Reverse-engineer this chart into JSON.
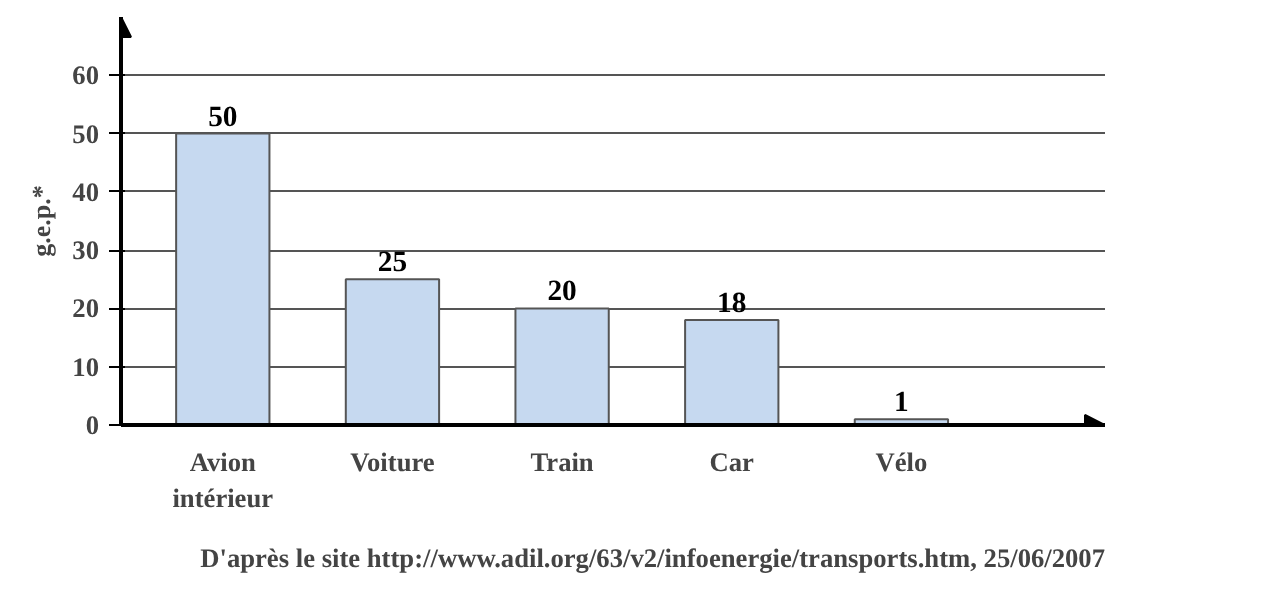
{
  "chart_data": {
    "type": "bar",
    "ylabel": "g.e.p.*",
    "categories": [
      "Avion intérieur",
      "Voiture",
      "Train",
      "Car",
      "Vélo"
    ],
    "values": [
      50,
      25,
      20,
      18,
      1
    ],
    "color": "#c6d9f0",
    "ylim": [
      0,
      70
    ],
    "yticks": [
      0,
      10,
      20,
      30,
      40,
      50,
      60
    ],
    "grid": "y",
    "data_labels": true,
    "annotations": [
      "D'après le site http://www.adil.org/63/v2/infoenergie/transports.htm, 25/06/2007"
    ]
  }
}
